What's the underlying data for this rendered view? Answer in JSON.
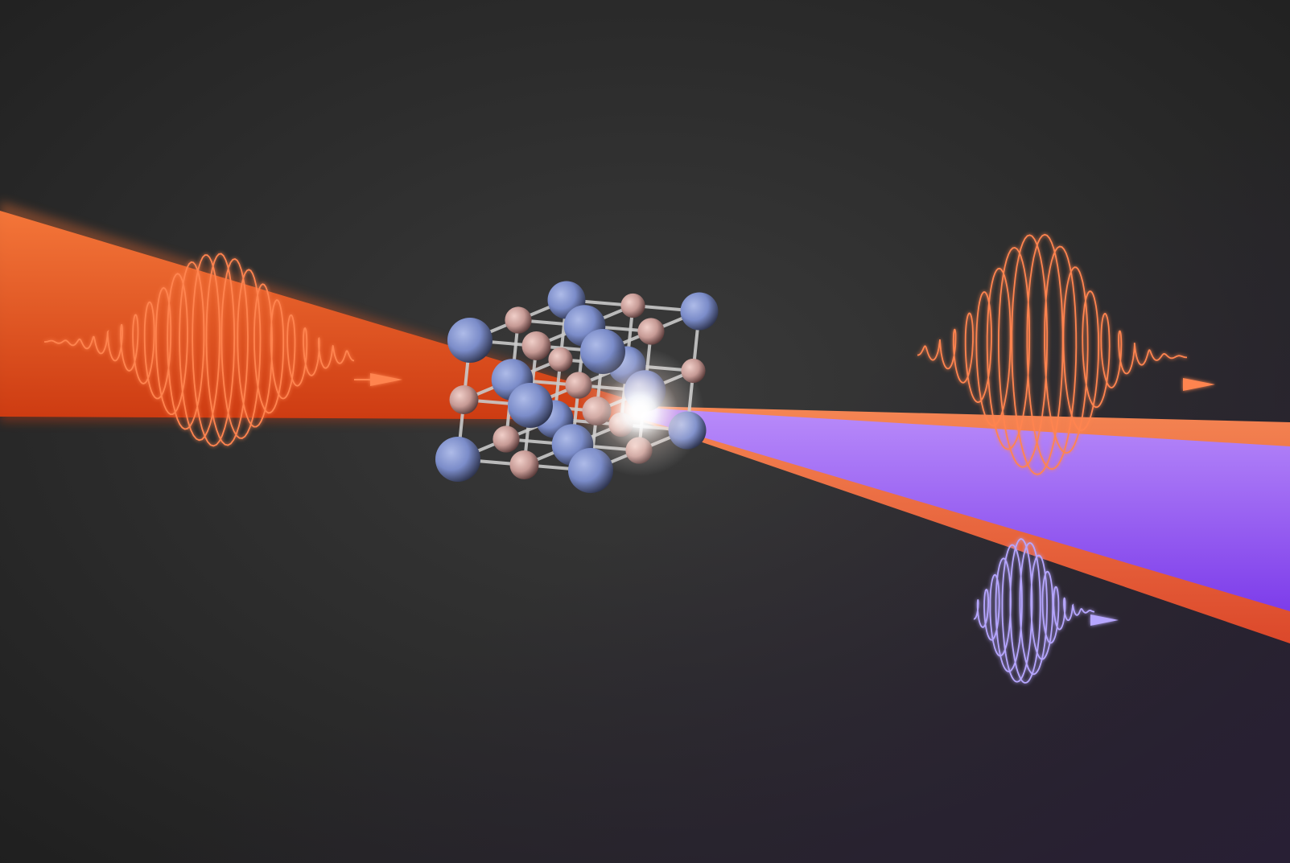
{
  "scene": {
    "background": {
      "center": "#3a3a3a",
      "edge": "#1f1f1f",
      "tint": "#2a1f38"
    },
    "beams": {
      "incident": {
        "name": "incident-beam",
        "colors": [
          "#ff7a3a",
          "#d63c10"
        ]
      },
      "transmitted": {
        "name": "transmitted-beam",
        "colors": [
          "#ff8a55",
          "#e54a2a"
        ]
      },
      "harmonic": {
        "name": "harmonic-beam",
        "colors": [
          "#b78cff",
          "#7a3cf0"
        ]
      }
    },
    "wavepackets": [
      {
        "name": "incident-wave-packet",
        "color": "#ff8450"
      },
      {
        "name": "output-fundamental-wave-packet",
        "color": "#ff8450"
      },
      {
        "name": "output-harmonic-wave-packet",
        "color": "#b6a6ff"
      }
    ],
    "crystal": {
      "name": "crystal-lattice",
      "rod_color": "#c9c9c9",
      "large_atom_color": "#7b8cc9",
      "small_atom_color": "#c69a95"
    },
    "focus_glow": {
      "name": "focus-glow",
      "color": "#ffffff"
    }
  }
}
